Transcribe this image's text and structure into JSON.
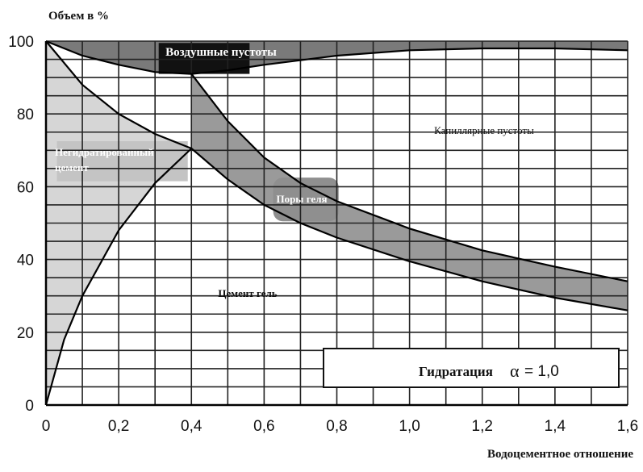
{
  "chart_data": {
    "type": "area",
    "ylabel": "Объем в %",
    "xlabel": "Водоцементное отношение",
    "xlim": [
      0,
      1.6
    ],
    "ylim": [
      0,
      100
    ],
    "xticks": [
      "0",
      "0,2",
      "0,4",
      "0,6",
      "0,8",
      "1,0",
      "1,2",
      "1,4",
      "1,6"
    ],
    "yticks": [
      "0",
      "20",
      "40",
      "60",
      "80",
      "100"
    ],
    "grid": true,
    "regions": [
      {
        "name": "Воздушные пустоты",
        "fill": "#111111"
      },
      {
        "name": "Капиллярные пустоты",
        "fill": "#ffffff"
      },
      {
        "name": "Негидратированный цемент",
        "fill": "#d6d6d6"
      },
      {
        "name": "Поры геля",
        "fill": "#9a9a9a"
      },
      {
        "name": "Цемент гель",
        "fill": "#ffffff"
      }
    ],
    "curves": {
      "air_boundary": {
        "x": [
          0,
          0.1,
          0.2,
          0.3,
          0.4,
          0.5,
          0.6,
          0.8,
          1.0,
          1.2,
          1.4,
          1.6
        ],
        "y": [
          100,
          96,
          93.5,
          91.5,
          91,
          92,
          93.5,
          96,
          97.5,
          98,
          98,
          97.5
        ]
      },
      "unhydrated_top": {
        "x": [
          0,
          0.1,
          0.2,
          0.3,
          0.4
        ],
        "y": [
          100,
          88,
          80,
          74.5,
          70.5
        ]
      },
      "gel_pores_upper": {
        "x": [
          0.4,
          0.5,
          0.6,
          0.7,
          0.8,
          1.0,
          1.2,
          1.4,
          1.6
        ],
        "y": [
          91,
          78,
          68,
          61,
          56,
          48.5,
          42.5,
          38,
          34
        ]
      },
      "gel_lower": {
        "x": [
          0.4,
          0.5,
          0.6,
          0.7,
          0.8,
          1.0,
          1.2,
          1.4,
          1.6
        ],
        "y": [
          70.5,
          62,
          55,
          50,
          46,
          39.5,
          34,
          29.5,
          26
        ]
      },
      "unhydrated_lower": {
        "x": [
          0,
          0.05,
          0.1,
          0.2,
          0.3,
          0.4
        ],
        "y": [
          0,
          18,
          30,
          48,
          61,
          70.5
        ]
      }
    },
    "annotations": [
      {
        "text": "Воздушные пустоты"
      },
      {
        "text": "Капиллярные пустоты"
      },
      {
        "text": "Негидратированный"
      },
      {
        "text": "цемент"
      },
      {
        "text": "Поры геля"
      },
      {
        "text": "Цемент гель"
      }
    ],
    "legend_box": {
      "label": "Гидратация",
      "symbol": "α",
      "value": "= 1,0"
    }
  }
}
